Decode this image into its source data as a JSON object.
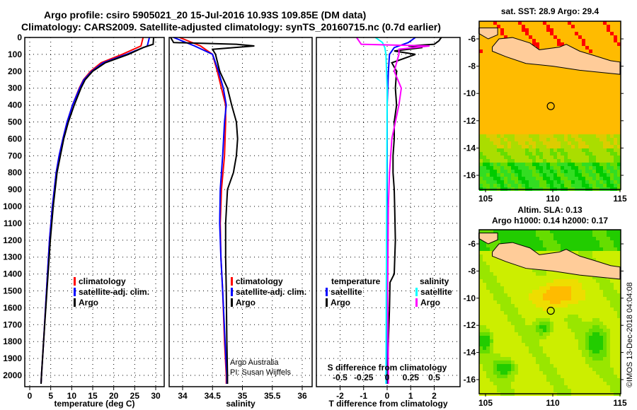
{
  "title_line1": "Argo profile: csiro 5905021_20 15-Jul-2016 10.93S 109.85E (DM data)",
  "title_line2": "Climatology: CARS2009. Satellite-adjusted climatology: synTS_20160715.nc (0.7d earlier)",
  "depth_ticks": [
    0,
    100,
    200,
    300,
    400,
    500,
    600,
    700,
    800,
    900,
    1000,
    1100,
    1200,
    1300,
    1400,
    1500,
    1600,
    1700,
    1800,
    1900,
    2000
  ],
  "credit": [
    "Argo Australia",
    "PI: Susan Wijffels"
  ],
  "watermark": "©IMOS 13-Dec-2018 04:04:08",
  "colors": {
    "climatology": "#ff0000",
    "satellite": "#0000ff",
    "argo": "#000000",
    "sal_satellite": "#00ffff",
    "sal_argo": "#ff00ff",
    "land": "#ffcc99"
  },
  "chart_data": [
    {
      "type": "line",
      "name": "temperature",
      "xlabel": "temperature (deg C)",
      "ylabel": "depth",
      "xlim": [
        -2,
        32
      ],
      "ylim": [
        2070,
        0
      ],
      "xticks": [
        0,
        5,
        10,
        15,
        20,
        25,
        30
      ],
      "legend": [
        "climatology",
        "satellite-adj. clim.",
        "Argo"
      ],
      "series": [
        {
          "name": "climatology",
          "color": "#ff0000",
          "points": [
            [
              0,
              27
            ],
            [
              50,
              26.5
            ],
            [
              100,
              22
            ],
            [
              150,
              17
            ],
            [
              200,
              14.5
            ],
            [
              250,
              12.8
            ],
            [
              300,
              11.8
            ],
            [
              400,
              10.2
            ],
            [
              500,
              8.9
            ],
            [
              600,
              7.9
            ],
            [
              700,
              7
            ],
            [
              800,
              6.3
            ],
            [
              1000,
              5.4
            ],
            [
              1200,
              4.7
            ],
            [
              1500,
              4
            ],
            [
              1800,
              3.3
            ],
            [
              2000,
              2.8
            ],
            [
              2050,
              2.7
            ]
          ]
        },
        {
          "name": "satellite-adj. clim.",
          "color": "#0000ff",
          "points": [
            [
              0,
              28.5
            ],
            [
              50,
              28
            ],
            [
              100,
              23
            ],
            [
              150,
              17.5
            ],
            [
              200,
              14.8
            ],
            [
              250,
              12.9
            ],
            [
              300,
              11.9
            ],
            [
              400,
              10.2
            ],
            [
              500,
              8.9
            ],
            [
              600,
              7.9
            ],
            [
              700,
              7
            ],
            [
              800,
              6.3
            ],
            [
              1000,
              5.4
            ],
            [
              1200,
              4.7
            ],
            [
              1500,
              4
            ],
            [
              1800,
              3.3
            ],
            [
              2000,
              2.8
            ],
            [
              2050,
              2.7
            ]
          ]
        },
        {
          "name": "Argo",
          "color": "#000000",
          "points": [
            [
              0,
              29.5
            ],
            [
              40,
              29.4
            ],
            [
              60,
              27
            ],
            [
              100,
              23.5
            ],
            [
              150,
              18
            ],
            [
              200,
              15
            ],
            [
              250,
              13.2
            ],
            [
              300,
              12.2
            ],
            [
              400,
              10.6
            ],
            [
              500,
              9.2
            ],
            [
              600,
              8.1
            ],
            [
              700,
              7.3
            ],
            [
              800,
              6.5
            ],
            [
              1000,
              5.6
            ],
            [
              1200,
              4.9
            ],
            [
              1500,
              4.1
            ],
            [
              1800,
              3.3
            ],
            [
              2000,
              2.8
            ],
            [
              2050,
              2.7
            ]
          ]
        }
      ]
    },
    {
      "type": "line",
      "name": "salinity",
      "xlabel": "salinity",
      "xlim": [
        33.77,
        36.1
      ],
      "ylim": [
        2070,
        0
      ],
      "xticks": [
        34,
        34.5,
        35,
        35.5,
        36
      ],
      "legend": [
        "climatology",
        "satellite-adj. clim.",
        "Argo"
      ],
      "series": [
        {
          "name": "climatology",
          "color": "#ff0000",
          "points": [
            [
              0,
              33.95
            ],
            [
              50,
              34.3
            ],
            [
              100,
              34.5
            ],
            [
              200,
              34.58
            ],
            [
              300,
              34.65
            ],
            [
              400,
              34.72
            ],
            [
              500,
              34.72
            ],
            [
              700,
              34.7
            ],
            [
              900,
              34.65
            ],
            [
              1100,
              34.63
            ],
            [
              1300,
              34.64
            ],
            [
              1500,
              34.67
            ],
            [
              1800,
              34.7
            ],
            [
              2000,
              34.73
            ],
            [
              2050,
              34.73
            ]
          ]
        },
        {
          "name": "satellite-adj. clim.",
          "color": "#0000ff",
          "points": [
            [
              0,
              33.85
            ],
            [
              50,
              34.2
            ],
            [
              100,
              34.5
            ],
            [
              200,
              34.6
            ],
            [
              300,
              34.68
            ],
            [
              400,
              34.73
            ],
            [
              500,
              34.7
            ],
            [
              700,
              34.67
            ],
            [
              900,
              34.63
            ],
            [
              1100,
              34.62
            ],
            [
              1300,
              34.64
            ],
            [
              1500,
              34.67
            ],
            [
              1800,
              34.71
            ],
            [
              2000,
              34.74
            ],
            [
              2050,
              34.74
            ]
          ]
        },
        {
          "name": "Argo",
          "color": "#000000",
          "points": [
            [
              0,
              33.8
            ],
            [
              30,
              33.85
            ],
            [
              40,
              34.9
            ],
            [
              50,
              35.2
            ],
            [
              70,
              34.5
            ],
            [
              100,
              34.55
            ],
            [
              200,
              34.62
            ],
            [
              300,
              34.75
            ],
            [
              400,
              34.82
            ],
            [
              500,
              34.9
            ],
            [
              600,
              34.92
            ],
            [
              700,
              34.9
            ],
            [
              800,
              34.85
            ],
            [
              850,
              34.8
            ],
            [
              900,
              34.75
            ],
            [
              1100,
              34.72
            ],
            [
              1300,
              34.72
            ],
            [
              1500,
              34.73
            ],
            [
              1800,
              34.74
            ],
            [
              2000,
              34.75
            ],
            [
              2050,
              34.75
            ]
          ]
        }
      ]
    },
    {
      "type": "line",
      "name": "difference",
      "xlabel": "T difference from climatology",
      "x2label": "S difference from climatology",
      "xlim": [
        -3,
        3
      ],
      "ylim": [
        2070,
        0
      ],
      "xticks": [
        -2,
        -1,
        0,
        1,
        2
      ],
      "x2ticks": [
        "-0.5",
        "-0.25",
        "0",
        "0.25",
        "0.5"
      ],
      "legend_temperature": {
        "title": "temperature",
        "items": [
          "satellite",
          "Argo"
        ]
      },
      "legend_salinity": {
        "title": "salinity",
        "items": [
          "satellite",
          "Argo"
        ]
      },
      "series": [
        {
          "name": "temperature satellite",
          "color": "#0000ff",
          "points": [
            [
              0,
              1.2
            ],
            [
              30,
              0.9
            ],
            [
              60,
              0.3
            ],
            [
              100,
              0.1
            ],
            [
              200,
              0.05
            ],
            [
              400,
              0
            ],
            [
              1000,
              0
            ],
            [
              2050,
              0
            ]
          ]
        },
        {
          "name": "temperature Argo",
          "color": "#000000",
          "points": [
            [
              0,
              2.3
            ],
            [
              20,
              2.2
            ],
            [
              40,
              2
            ],
            [
              50,
              0.9
            ],
            [
              60,
              1.5
            ],
            [
              80,
              0.3
            ],
            [
              100,
              1.2
            ],
            [
              150,
              0.2
            ],
            [
              200,
              0.4
            ],
            [
              300,
              0.35
            ],
            [
              400,
              0.4
            ],
            [
              500,
              0.3
            ],
            [
              600,
              0.3
            ],
            [
              700,
              0.25
            ],
            [
              800,
              0.25
            ],
            [
              900,
              0.3
            ],
            [
              1000,
              0.32
            ],
            [
              1200,
              0.35
            ],
            [
              1400,
              0.3
            ],
            [
              1450,
              0.12
            ],
            [
              1600,
              0.1
            ],
            [
              1800,
              0.05
            ],
            [
              2000,
              0.02
            ],
            [
              2050,
              0.03
            ]
          ]
        },
        {
          "name": "salinity satellite",
          "color": "#00ffff",
          "points": [
            [
              0,
              -0.5
            ],
            [
              30,
              -0.2
            ],
            [
              60,
              -0.1
            ],
            [
              100,
              -0.05
            ],
            [
              300,
              0
            ],
            [
              2050,
              -0.05
            ]
          ]
        },
        {
          "name": "salinity Argo",
          "color": "#ff00ff",
          "points": [
            [
              0,
              -1.3
            ],
            [
              40,
              -1.1
            ],
            [
              50,
              1.8
            ],
            [
              70,
              0.5
            ],
            [
              100,
              0.5
            ],
            [
              200,
              0.3
            ],
            [
              300,
              0.6
            ],
            [
              400,
              0.5
            ],
            [
              600,
              0.2
            ],
            [
              800,
              0.1
            ],
            [
              1000,
              0.05
            ],
            [
              1500,
              0.02
            ],
            [
              2050,
              0.05
            ]
          ]
        }
      ]
    },
    {
      "type": "heatmap",
      "name": "SST map",
      "title": "sat. SST: 28.9 Argo: 29.4",
      "xticks": [
        105,
        110,
        115
      ],
      "yticks": [
        -6,
        -8,
        -10,
        -12,
        -14,
        -16
      ],
      "xlim": [
        104.5,
        115
      ],
      "ylim": [
        -16.8,
        -5.2
      ],
      "argo_position": [
        109.85,
        -10.93
      ]
    },
    {
      "type": "heatmap",
      "name": "SLA map",
      "title_line1": "Altim. SLA: 0.13",
      "title_line2": "Argo h1000: 0.14 h2000: 0.17",
      "xticks": [
        105,
        110,
        115
      ],
      "yticks": [
        -6,
        -8,
        -10,
        -12,
        -14,
        -16
      ],
      "xlim": [
        104.5,
        115
      ],
      "ylim": [
        -16.8,
        -5.2
      ],
      "argo_position": [
        109.85,
        -10.93
      ]
    }
  ]
}
